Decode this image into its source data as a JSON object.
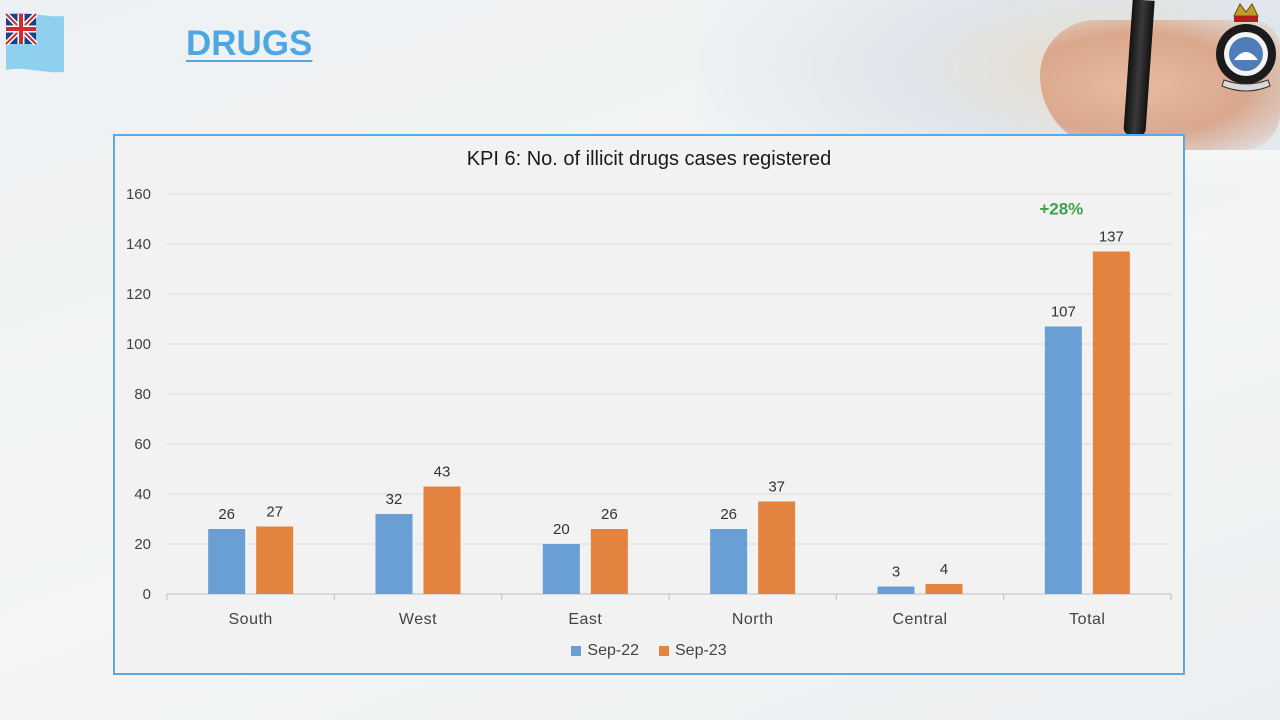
{
  "page": {
    "title": "DRUGS"
  },
  "emblem": {
    "alt": "Fiji Police emblem"
  },
  "chart_data": {
    "type": "bar",
    "title": "KPI 6: No. of illicit drugs cases registered",
    "categories": [
      "South",
      "West",
      "East",
      "North",
      "Central",
      "Total"
    ],
    "series": [
      {
        "name": "Sep-22",
        "color": "#6a9fd6",
        "values": [
          26,
          32,
          20,
          26,
          3,
          107
        ]
      },
      {
        "name": "Sep-23",
        "color": "#e3833f",
        "values": [
          27,
          43,
          26,
          37,
          4,
          137
        ]
      }
    ],
    "ylim": [
      0,
      160
    ],
    "yticks": [
      0,
      20,
      40,
      60,
      80,
      100,
      120,
      140,
      160
    ],
    "grid": true,
    "legend": "bottom",
    "annotations": [
      {
        "category": "Total",
        "text": "+28%",
        "color": "#3fa14a"
      }
    ]
  }
}
